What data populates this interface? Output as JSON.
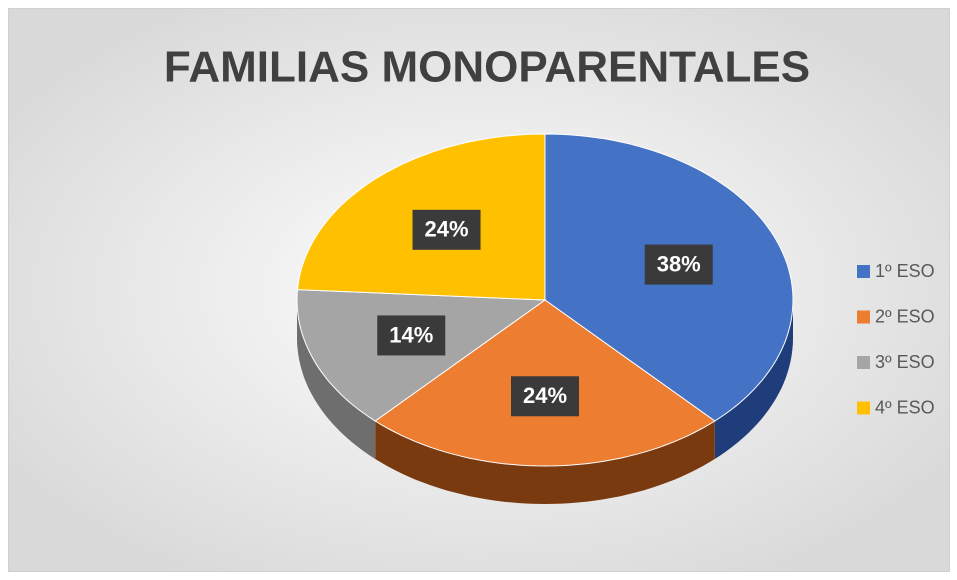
{
  "chart_data": {
    "type": "pie",
    "title": "FAMILIAS MONOPARENTALES",
    "categories": [
      "1º ESO",
      "2º ESO",
      "3º ESO",
      "4º ESO"
    ],
    "values": [
      38,
      24,
      14,
      24
    ],
    "value_labels": [
      "38%",
      "24%",
      "14%",
      "24%"
    ],
    "colors": [
      "#4472c4",
      "#ed7d31",
      "#a5a5a5",
      "#ffc000"
    ],
    "side_colors": [
      "#1f3d7a",
      "#7a3a10",
      "#6e6e6e",
      "#a07800"
    ],
    "legend": "right"
  }
}
